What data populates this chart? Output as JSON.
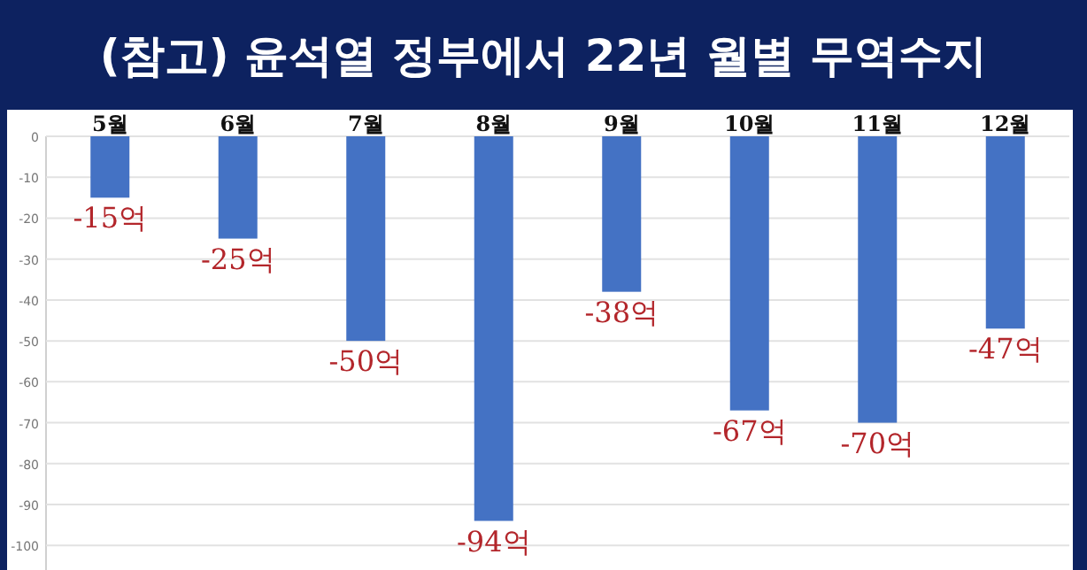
{
  "chart_data": {
    "type": "bar",
    "title": "(참고) 윤석열 정부에서 22년 월별 무역수지",
    "categories": [
      "5월",
      "6월",
      "7월",
      "8월",
      "9월",
      "10월",
      "11월",
      "12월"
    ],
    "values": [
      -15,
      -25,
      -50,
      -94,
      -38,
      -67,
      -70,
      -47
    ],
    "value_labels": [
      "-15억",
      "-25억",
      "-50억",
      "-94억",
      "-38억",
      "-67억",
      "-70억",
      "-47억"
    ],
    "color": "#4472c4",
    "ylim": [
      -106,
      0
    ],
    "yticks": [
      0,
      -10,
      -20,
      -30,
      -40,
      -50,
      -60,
      -70,
      -80,
      -90,
      -100
    ],
    "grid": "y"
  }
}
